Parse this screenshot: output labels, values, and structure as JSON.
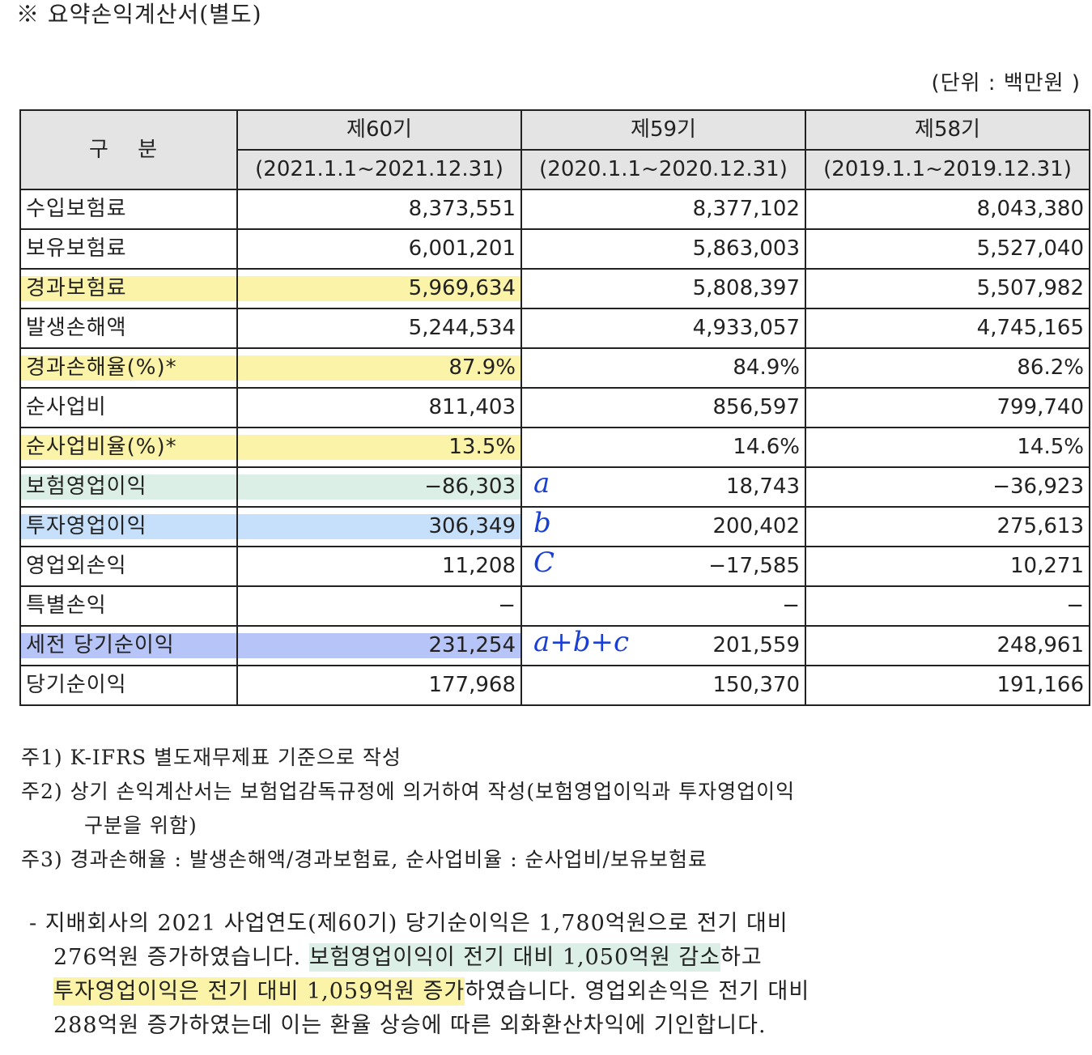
{
  "title": "※ 요약손익계산서(별도)",
  "unit": "(단위 : 백만원 )",
  "table": {
    "header_label": "구 분",
    "periods": [
      {
        "name": "제60기",
        "range": "(2021.1.1~2021.12.31)"
      },
      {
        "name": "제59기",
        "range": "(2020.1.1~2020.12.31)"
      },
      {
        "name": "제58기",
        "range": "(2019.1.1~2019.12.31)"
      }
    ],
    "rows": [
      {
        "label": "수입보험료",
        "values": [
          "8,373,551",
          "8,377,102",
          "8,043,380"
        ],
        "highlight": ""
      },
      {
        "label": "보유보험료",
        "values": [
          "6,001,201",
          "5,863,003",
          "5,527,040"
        ],
        "highlight": ""
      },
      {
        "label": "경과보험료",
        "values": [
          "5,969,634",
          "5,808,397",
          "5,507,982"
        ],
        "highlight": "#fbf3a8"
      },
      {
        "label": "발생손해액",
        "values": [
          "5,244,534",
          "4,933,057",
          "4,745,165"
        ],
        "highlight": ""
      },
      {
        "label": "경과손해율(%)*",
        "values": [
          "87.9%",
          "84.9%",
          "86.2%"
        ],
        "highlight": "#fbf3a8"
      },
      {
        "label": "순사업비",
        "values": [
          "811,403",
          "856,597",
          "799,740"
        ],
        "highlight": ""
      },
      {
        "label": "순사업비율(%)*",
        "values": [
          "13.5%",
          "14.6%",
          "14.5%"
        ],
        "highlight": "#fbf3a8"
      },
      {
        "label": "보험영업이익",
        "values": [
          "−86,303",
          "18,743",
          "−36,923"
        ],
        "highlight": "#dcefe7"
      },
      {
        "label": "투자영업이익",
        "values": [
          "306,349",
          "200,402",
          "275,613"
        ],
        "highlight": "#c6e0fb"
      },
      {
        "label": "영업외손익",
        "values": [
          "11,208",
          "−17,585",
          "10,271"
        ],
        "highlight": ""
      },
      {
        "label": "특별손익",
        "values": [
          "−",
          "−",
          "−"
        ],
        "highlight": ""
      },
      {
        "label": "세전 당기순이익",
        "values": [
          "231,254",
          "201,559",
          "248,961"
        ],
        "highlight": "#b7c4f7"
      },
      {
        "label": "당기순이익",
        "values": [
          "177,968",
          "150,370",
          "191,166"
        ],
        "highlight": ""
      }
    ]
  },
  "handwritten": {
    "a": "a",
    "b": "b",
    "c": "C",
    "sum": "a+b+c"
  },
  "notes": [
    "주1) K-IFRS 별도재무제표 기준으로 작성",
    "주2) 상기 손익계산서는 보험업감독규정에 의거하여 작성(보험영업이익과 투자영업이익",
    "구분을 위함)",
    "주3) 경과손해율 : 발생손해액/경과보험료, 순사업비율 : 순사업비/보유보험료"
  ],
  "summary": {
    "line1": "- 지배회사의 2021 사업연도(제60기) 당기순이익은 1,780억원으로 전기 대비",
    "line2_a": "276억원 증가하였습니다. ",
    "line2_b": "보험영업이익이 전기 대비 1,050억원 감소",
    "line2_c": "하고",
    "line3_a": "투자영업이익은 전기 대비 1,059억원 증가",
    "line3_b": "하였습니다. 영업외손익은 전기 대비",
    "line4": "288억원 증가하였는데 이는 환율 상승에 따른 외화환산차익에 기인합니다.",
    "highlight_green": "#dcefe7",
    "highlight_yellow": "#fbf3a8"
  }
}
